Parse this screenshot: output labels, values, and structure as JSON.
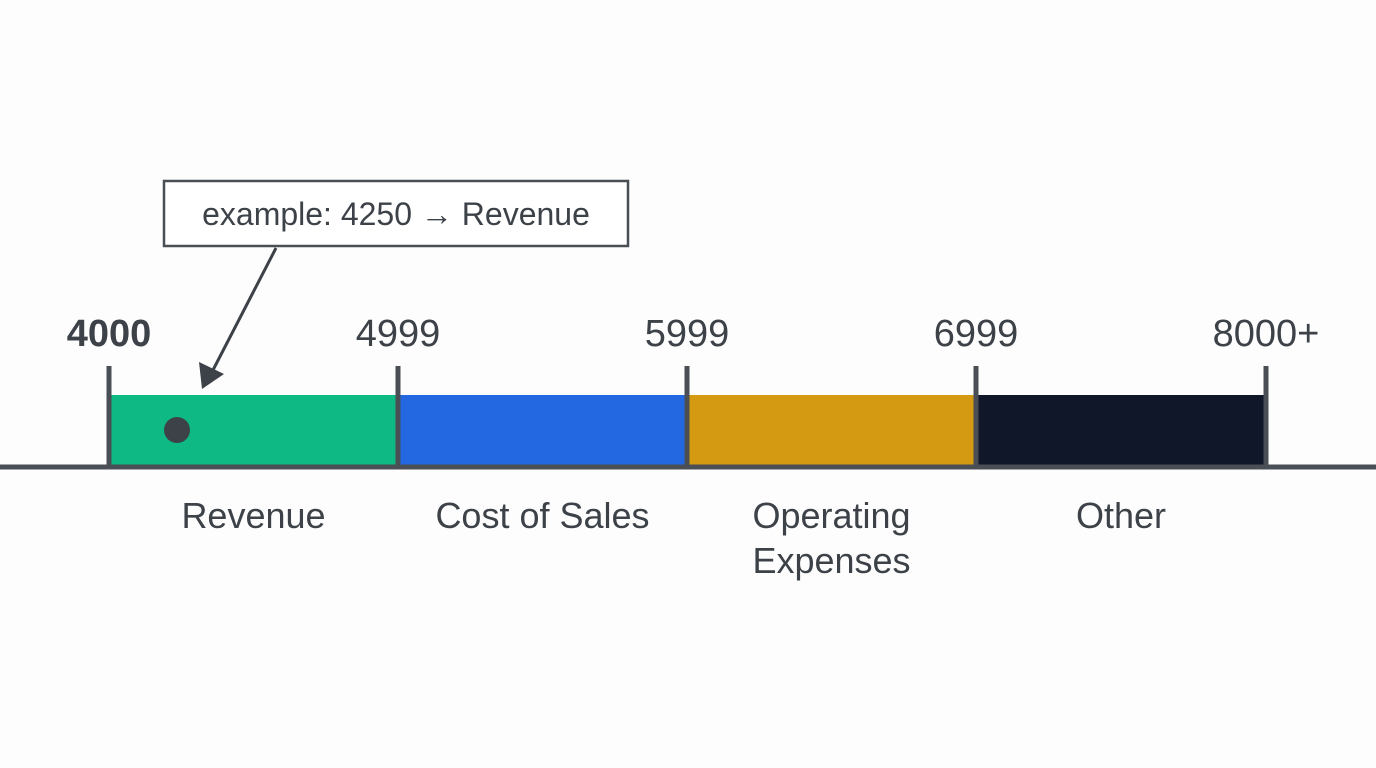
{
  "title": "",
  "callout": {
    "text": "example: 4250 → Revenue"
  },
  "ticks": [
    {
      "label": "4000",
      "bold": true
    },
    {
      "label": "4999",
      "bold": false
    },
    {
      "label": "5999",
      "bold": false
    },
    {
      "label": "6999",
      "bold": false
    },
    {
      "label": "8000+",
      "bold": false
    }
  ],
  "segments": [
    {
      "label_lines": [
        "Revenue"
      ],
      "color": "#0fb983"
    },
    {
      "label_lines": [
        "Cost of Sales"
      ],
      "color": "#2368e1"
    },
    {
      "label_lines": [
        "Operating",
        "Expenses"
      ],
      "color": "#d49a12"
    },
    {
      "label_lines": [
        "Other"
      ],
      "color": "#0f1729"
    }
  ],
  "example_point": {
    "value": 4250,
    "segment": "Revenue"
  },
  "colors": {
    "axis": "#4a4f55",
    "text": "#3c4248",
    "marker": "#3c4248"
  }
}
